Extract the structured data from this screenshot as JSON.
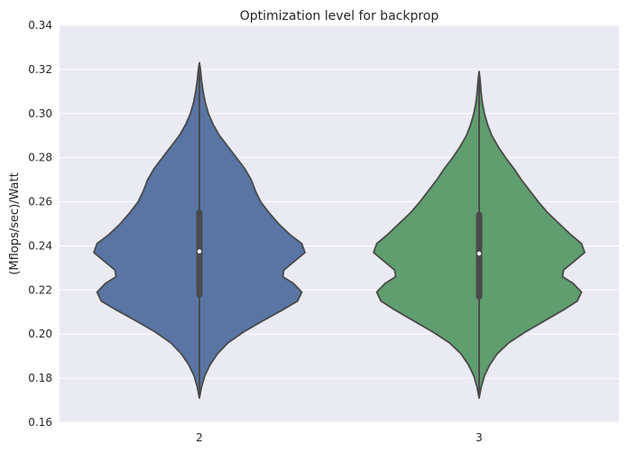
{
  "chart_data": {
    "type": "violin",
    "title": "Optimization level for backprop",
    "xlabel": "",
    "ylabel": "(Mflops/sec)/Watt",
    "ylim": [
      0.16,
      0.34
    ],
    "yticks": [
      "0.16",
      "0.18",
      "0.20",
      "0.22",
      "0.24",
      "0.26",
      "0.28",
      "0.30",
      "0.32",
      "0.34"
    ],
    "grid": true,
    "categories": [
      "2",
      "3"
    ],
    "series": [
      {
        "category": "2",
        "color": "#5875a4",
        "min": 0.171,
        "max": 0.323,
        "q1": 0.218,
        "median": 0.2375,
        "q3": 0.255,
        "density": [
          [
            0.171,
            0.0
          ],
          [
            0.176,
            0.02
          ],
          [
            0.181,
            0.05
          ],
          [
            0.186,
            0.1
          ],
          [
            0.191,
            0.17
          ],
          [
            0.196,
            0.27
          ],
          [
            0.201,
            0.42
          ],
          [
            0.206,
            0.6
          ],
          [
            0.211,
            0.79
          ],
          [
            0.215,
            0.93
          ],
          [
            0.219,
            0.97
          ],
          [
            0.223,
            0.89
          ],
          [
            0.226,
            0.79
          ],
          [
            0.229,
            0.8
          ],
          [
            0.233,
            0.9
          ],
          [
            0.237,
            1.0
          ],
          [
            0.241,
            0.97
          ],
          [
            0.245,
            0.86
          ],
          [
            0.25,
            0.75
          ],
          [
            0.255,
            0.66
          ],
          [
            0.26,
            0.58
          ],
          [
            0.265,
            0.53
          ],
          [
            0.27,
            0.49
          ],
          [
            0.275,
            0.43
          ],
          [
            0.28,
            0.35
          ],
          [
            0.285,
            0.27
          ],
          [
            0.29,
            0.19
          ],
          [
            0.295,
            0.13
          ],
          [
            0.3,
            0.085
          ],
          [
            0.305,
            0.055
          ],
          [
            0.31,
            0.035
          ],
          [
            0.315,
            0.02
          ],
          [
            0.32,
            0.01
          ],
          [
            0.323,
            0.0
          ]
        ]
      },
      {
        "category": "3",
        "color": "#5f9e6e",
        "min": 0.171,
        "max": 0.319,
        "q1": 0.217,
        "median": 0.2365,
        "q3": 0.254,
        "density": [
          [
            0.171,
            0.0
          ],
          [
            0.176,
            0.02
          ],
          [
            0.181,
            0.05
          ],
          [
            0.186,
            0.1
          ],
          [
            0.191,
            0.17
          ],
          [
            0.196,
            0.28
          ],
          [
            0.201,
            0.44
          ],
          [
            0.206,
            0.62
          ],
          [
            0.211,
            0.8
          ],
          [
            0.215,
            0.93
          ],
          [
            0.219,
            0.97
          ],
          [
            0.223,
            0.89
          ],
          [
            0.226,
            0.79
          ],
          [
            0.229,
            0.8
          ],
          [
            0.233,
            0.9
          ],
          [
            0.237,
            1.0
          ],
          [
            0.241,
            0.97
          ],
          [
            0.245,
            0.87
          ],
          [
            0.25,
            0.76
          ],
          [
            0.255,
            0.65
          ],
          [
            0.26,
            0.56
          ],
          [
            0.265,
            0.48
          ],
          [
            0.27,
            0.4
          ],
          [
            0.275,
            0.33
          ],
          [
            0.28,
            0.25
          ],
          [
            0.285,
            0.18
          ],
          [
            0.29,
            0.12
          ],
          [
            0.295,
            0.08
          ],
          [
            0.3,
            0.05
          ],
          [
            0.305,
            0.03
          ],
          [
            0.31,
            0.018
          ],
          [
            0.315,
            0.01
          ],
          [
            0.319,
            0.0
          ]
        ]
      }
    ],
    "style": {
      "background": "#eaeaf2",
      "grid_color": "#ffffff",
      "outline_color": "#4a4a4a"
    }
  }
}
